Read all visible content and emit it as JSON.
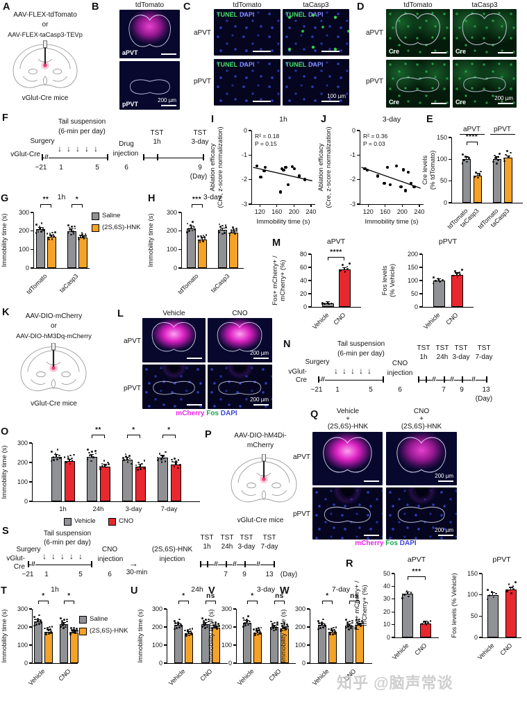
{
  "watermark": "知乎 @脑声常谈",
  "colors": {
    "gray": "#8F9194",
    "orange": "#F5A228",
    "red": "#E8282F"
  },
  "panelA": {
    "letter": "A",
    "line1": "AAV-FLEX-tdTomato",
    "line2": "or",
    "line3": "AAV-FLEX-taCasp3-TEVp",
    "mice": "vGlut-Cre mice"
  },
  "panelB": {
    "letter": "B",
    "title": "tdTomato",
    "row1": "aPVT",
    "row2": "pPVT",
    "scale": "200 µm"
  },
  "panelC": {
    "letter": "C",
    "col1": "tdTomato",
    "col2": "taCasp3",
    "row1": "aPVT",
    "row2": "pPVT",
    "tunel": "TUNEL",
    "dapi": "DAPI",
    "scale": "100 µm"
  },
  "panelD": {
    "letter": "D",
    "col1": "tdTomato",
    "col2": "taCasp3",
    "row1": "aPVT",
    "row2": "pPVT",
    "cre": "Cre",
    "scale": "200 µm"
  },
  "panelE": {
    "letter": "E"
  },
  "panelF": {
    "letter": "F",
    "tail1": "Tail suspension",
    "tail2": "(6-min per day)",
    "surgery": "Surgery",
    "mouse": "vGlut-Cre",
    "drug1": "Drug",
    "drug2": "injection",
    "tst1a": "TST",
    "tst1b": "1h",
    "tst2a": "TST",
    "tst2b": "3-day",
    "m21": "−21",
    "d1": "1",
    "d5": "5",
    "d6": "6",
    "d9": "9",
    "day": "(Day)"
  },
  "panelG": {
    "letter": "G"
  },
  "panelH": {
    "letter": "H"
  },
  "panelI": {
    "letter": "I"
  },
  "panelJ": {
    "letter": "J"
  },
  "panelK": {
    "letter": "K",
    "line1": "AAV-DIO-mCherry",
    "line2": "or",
    "line3": "AAV-DIO-hM3Dq-mCherry",
    "mice": "vGlut-Cre mice"
  },
  "panelL": {
    "letter": "L",
    "col1": "Vehicle",
    "col2": "CNO",
    "row1": "aPVT",
    "row2": "pPVT",
    "scale": "200 µm",
    "cap1": "mCherry",
    "cap2": "Fos",
    "cap3": "DAPI"
  },
  "panelM": {
    "letter": "M"
  },
  "panelN": {
    "letter": "N",
    "tail1": "Tail suspension",
    "tail2": "(6-min per day)",
    "surgery": "Surgery",
    "mouse1": "vGlut-",
    "mouse2": "Cre",
    "cno1": "CNO",
    "cno2": "injection",
    "tst": "TST",
    "t1": "1h",
    "t2": "24h",
    "t3": "3-day",
    "t4": "7-day",
    "m21": "−21",
    "d1": "1",
    "d5": "5",
    "d6": "6",
    "d7": "7",
    "d9": "9",
    "d13": "13",
    "day": "(Day)"
  },
  "panelO": {
    "letter": "O"
  },
  "panelP": {
    "letter": "P",
    "line1": "AAV-DIO-hM4Di-",
    "line2": "mCherry",
    "mice": "vGlut-Cre mice"
  },
  "panelQ": {
    "letter": "Q",
    "col1a": "Vehicle",
    "col1b": "+",
    "col1c": "(2S,6S)-HNK",
    "col2a": "CNO",
    "col2b": "+",
    "col2c": "(2S,6S)-HNK",
    "row1": "aPVT",
    "row2": "pPVT",
    "scale": "200 µm",
    "cap1": "mCherry",
    "cap2": "Fos",
    "cap3": "DAPI"
  },
  "panelR": {
    "letter": "R"
  },
  "panelS": {
    "letter": "S",
    "tail1": "Tail suspension",
    "tail2": "(6-min per day)",
    "surgery": "Surgery",
    "mouse1": "vGlut-",
    "mouse2": "Cre",
    "cno1": "CNO",
    "cno2": "injection",
    "wait": "30-min",
    "hnk1": "(2S,6S)-HNK",
    "hnk2": "injection",
    "tst": "TST",
    "t1": "1h",
    "t2": "24h",
    "t3": "3-day",
    "t4": "7-day",
    "m21": "−21",
    "d1": "1",
    "d5": "5",
    "d6": "6",
    "d7": "7",
    "d9": "9",
    "d13": "13",
    "day": "(Day)"
  },
  "panelT": {
    "letter": "T"
  },
  "panelU": {
    "letter": "U"
  },
  "panelV": {
    "letter": "V"
  },
  "panelW": {
    "letter": "W"
  },
  "chart_data": [
    {
      "id": "E",
      "type": "bar",
      "ylabel": "Cre levels\n(% tdTomato)",
      "ylim": [
        0,
        150
      ],
      "yticks": [
        0,
        50,
        100,
        150
      ],
      "groups": [
        {
          "header": "aPVT",
          "sig": "****",
          "bars": [
            {
              "label": "tdTomato",
              "value": 100,
              "color": "gray"
            },
            {
              "label": "taCasp3",
              "value": 62,
              "color": "orange"
            }
          ]
        },
        {
          "header": "pPVT",
          "bars": [
            {
              "label": "tdTomato",
              "value": 100,
              "color": "gray"
            },
            {
              "label": "taCasp3",
              "value": 103,
              "color": "orange"
            }
          ]
        }
      ]
    },
    {
      "id": "G",
      "type": "bar",
      "title": "1h",
      "ylabel": "Immobility time (s)",
      "ylim": [
        0,
        300
      ],
      "yticks": [
        0,
        100,
        200,
        300
      ],
      "rotate_group": true,
      "groups": [
        {
          "label": "tdTomato",
          "sig": "**",
          "bars": [
            {
              "series": "Saline",
              "value": 210,
              "color": "gray"
            },
            {
              "series": "(2S,6S)-HNK",
              "value": 168,
              "color": "orange"
            }
          ]
        },
        {
          "label": "taCasp3",
          "sig": "*",
          "bars": [
            {
              "series": "Saline",
              "value": 200,
              "color": "gray"
            },
            {
              "series": "(2S,6S)-HNK",
              "value": 165,
              "color": "orange"
            }
          ]
        }
      ],
      "legend": [
        {
          "label": "Saline",
          "color": "gray"
        },
        {
          "label": "(2S,6S)-HNK",
          "color": "orange"
        }
      ]
    },
    {
      "id": "H",
      "type": "bar",
      "title": "3-day",
      "ylabel": "Immobility time (s)",
      "ylim": [
        0,
        300
      ],
      "yticks": [
        0,
        100,
        200,
        300
      ],
      "rotate_group": true,
      "groups": [
        {
          "label": "tdTomato",
          "sig": "***",
          "bars": [
            {
              "series": "Saline",
              "value": 215,
              "color": "gray"
            },
            {
              "series": "(2S,6S)-HNK",
              "value": 155,
              "color": "orange"
            }
          ]
        },
        {
          "label": "taCasp3",
          "bars": [
            {
              "series": "Saline",
              "value": 205,
              "color": "gray"
            },
            {
              "series": "(2S,6S)-HNK",
              "value": 190,
              "color": "orange"
            }
          ]
        }
      ]
    },
    {
      "id": "I",
      "type": "scatter",
      "title": "1h",
      "stats": [
        "R² = 0.18",
        "P = 0.15"
      ],
      "ylabel": "Ablation efficacy\n(Cre, z-score normalization)",
      "xlabel": "Immobility time (s)",
      "xlim": [
        100,
        250
      ],
      "xticks": [
        120,
        160,
        200,
        240
      ],
      "ylim": [
        -3,
        0
      ],
      "yticks": [
        0,
        -1,
        -2,
        -3
      ],
      "points": [
        [
          113,
          -1.45
        ],
        [
          122,
          -1.9
        ],
        [
          130,
          -1.65
        ],
        [
          133,
          -1.5
        ],
        [
          168,
          -2.5
        ],
        [
          172,
          -1.55
        ],
        [
          176,
          -1.62
        ],
        [
          181,
          -1.5
        ],
        [
          186,
          -2.2
        ],
        [
          196,
          -1.48
        ],
        [
          201,
          -1.55
        ],
        [
          213,
          -1.85
        ],
        [
          226,
          -2.0
        ]
      ],
      "trendline": [
        [
          104,
          -1.5
        ],
        [
          243,
          -2.05
        ]
      ]
    },
    {
      "id": "J",
      "type": "scatter",
      "title": "3-day",
      "stats": [
        "R² = 0.36",
        "P = 0.03"
      ],
      "ylabel": "Ablation efficacy\n(Cre, z-score normalization)",
      "xlabel": "Immobility time (s)",
      "xlim": [
        100,
        250
      ],
      "xticks": [
        120,
        160,
        200,
        240
      ],
      "ylim": [
        -3,
        0
      ],
      "yticks": [
        0,
        -1,
        -2,
        -3
      ],
      "points": [
        [
          112,
          -1.55
        ],
        [
          118,
          -1.62
        ],
        [
          142,
          -1.85
        ],
        [
          158,
          -2.15
        ],
        [
          165,
          -1.5
        ],
        [
          172,
          -2.2
        ],
        [
          186,
          -1.45
        ],
        [
          197,
          -2.3
        ],
        [
          203,
          -1.6
        ],
        [
          208,
          -2.45
        ],
        [
          214,
          -1.7
        ],
        [
          221,
          -2.15
        ],
        [
          228,
          -2.3
        ]
      ],
      "trendline": [
        [
          104,
          -1.5
        ],
        [
          243,
          -2.35
        ]
      ]
    },
    {
      "id": "M1",
      "type": "bar",
      "title": "aPVT",
      "ylabel": "Fos+ mCherry+ /\nmCherry+ (%)",
      "ylim": [
        0,
        80
      ],
      "yticks": [
        0,
        20,
        40,
        60,
        80
      ],
      "groups": [
        {
          "sig": "****",
          "bars": [
            {
              "label": "Vehicle",
              "value": 5,
              "color": "gray"
            },
            {
              "label": "CNO",
              "value": 57,
              "color": "red"
            }
          ]
        }
      ]
    },
    {
      "id": "M2",
      "type": "bar",
      "title": "pPVT",
      "ylabel": "Fos levels\n(% Vehicle)",
      "ylim": [
        0,
        200
      ],
      "yticks": [
        0,
        50,
        100,
        150,
        200
      ],
      "groups": [
        {
          "bars": [
            {
              "label": "Vehicle",
              "value": 100,
              "color": "gray"
            },
            {
              "label": "CNO",
              "value": 122,
              "color": "red"
            }
          ]
        }
      ]
    },
    {
      "id": "O",
      "type": "bar",
      "ylabel": "Immobility time (s)",
      "ylim": [
        0,
        300
      ],
      "yticks": [
        0,
        100,
        200,
        300
      ],
      "groups": [
        {
          "label": "1h",
          "bars": [
            {
              "series": "Vehicle",
              "value": 230,
              "color": "gray"
            },
            {
              "series": "CNO",
              "value": 207,
              "color": "red"
            }
          ]
        },
        {
          "label": "24h",
          "sig": "**",
          "bars": [
            {
              "series": "Vehicle",
              "value": 230,
              "color": "gray"
            },
            {
              "series": "CNO",
              "value": 180,
              "color": "red"
            }
          ]
        },
        {
          "label": "3-day",
          "sig": "*",
          "bars": [
            {
              "series": "Vehicle",
              "value": 215,
              "color": "gray"
            },
            {
              "series": "CNO",
              "value": 180,
              "color": "red"
            }
          ]
        },
        {
          "label": "7-day",
          "sig": "*",
          "bars": [
            {
              "series": "Vehicle",
              "value": 225,
              "color": "gray"
            },
            {
              "series": "CNO",
              "value": 190,
              "color": "red"
            }
          ]
        }
      ],
      "legend": [
        {
          "label": "Vehicle",
          "color": "gray"
        },
        {
          "label": "CNO",
          "color": "red"
        }
      ]
    },
    {
      "id": "R1",
      "type": "bar",
      "title": "aPVT",
      "ylabel": "Fos+ mCherry+ /\nmCherry+ (%)",
      "ylim": [
        0,
        50
      ],
      "yticks": [
        0,
        10,
        20,
        30,
        40,
        50
      ],
      "groups": [
        {
          "sig": "***",
          "bars": [
            {
              "label": "Vehicle",
              "value": 34,
              "color": "gray"
            },
            {
              "label": "CNO",
              "value": 11,
              "color": "red"
            }
          ]
        }
      ]
    },
    {
      "id": "R2",
      "type": "bar",
      "title": "pPVT",
      "ylabel": "Fos levels (% Vehicle)",
      "ylim": [
        0,
        150
      ],
      "yticks": [
        0,
        50,
        100,
        150
      ],
      "groups": [
        {
          "bars": [
            {
              "label": "Vehicle",
              "value": 100,
              "color": "gray"
            },
            {
              "label": "CNO",
              "value": 112,
              "color": "red"
            }
          ]
        }
      ]
    },
    {
      "id": "T",
      "type": "bar",
      "title": "1h",
      "ylabel": "Immobility time (s)",
      "ylim": [
        0,
        300
      ],
      "yticks": [
        0,
        100,
        200,
        300
      ],
      "rotate_group": true,
      "groups": [
        {
          "label": "Vehicle",
          "sig": "*",
          "bars": [
            {
              "series": "Saline",
              "value": 230,
              "color": "gray"
            },
            {
              "series": "(2S,6S)-HNK",
              "value": 175,
              "color": "orange"
            }
          ]
        },
        {
          "label": "CNO",
          "sig": "*",
          "bars": [
            {
              "series": "Saline",
              "value": 215,
              "color": "gray"
            },
            {
              "series": "(2S,6S)-HNK",
              "value": 170,
              "color": "orange"
            }
          ]
        }
      ],
      "legend": [
        {
          "label": "Saline",
          "color": "gray"
        },
        {
          "label": "(2S,6S)-HNK",
          "color": "orange"
        }
      ]
    },
    {
      "id": "U",
      "type": "bar",
      "title": "24h",
      "ylabel": "Immobility time (s)",
      "ylim": [
        0,
        300
      ],
      "yticks": [
        0,
        100,
        200,
        300
      ],
      "rotate_group": true,
      "groups": [
        {
          "label": "Vehicle",
          "sig": "*",
          "bars": [
            {
              "series": "Saline",
              "value": 210,
              "color": "gray"
            },
            {
              "series": "(2S,6S)-HNK",
              "value": 165,
              "color": "orange"
            }
          ]
        },
        {
          "label": "CNO",
          "sig": "ns",
          "bars": [
            {
              "series": "Saline",
              "value": 215,
              "color": "gray"
            },
            {
              "series": "(2S,6S)-HNK",
              "value": 195,
              "color": "orange"
            }
          ]
        }
      ]
    },
    {
      "id": "V",
      "type": "bar",
      "title": "3-day",
      "ylabel": "Immobility time (s)",
      "ylim": [
        0,
        300
      ],
      "yticks": [
        0,
        100,
        200,
        300
      ],
      "rotate_group": true,
      "groups": [
        {
          "label": "Vehicle",
          "sig": "*",
          "bars": [
            {
              "series": "Saline",
              "value": 225,
              "color": "gray"
            },
            {
              "series": "(2S,6S)-HNK",
              "value": 170,
              "color": "orange"
            }
          ]
        },
        {
          "label": "CNO",
          "sig": "ns",
          "bars": [
            {
              "series": "Saline",
              "value": 200,
              "color": "gray"
            },
            {
              "series": "(2S,6S)-HNK",
              "value": 192,
              "color": "orange"
            }
          ]
        }
      ]
    },
    {
      "id": "W",
      "type": "bar",
      "title": "7-day",
      "ylabel": "Immobility time (s)",
      "ylim": [
        0,
        300
      ],
      "yticks": [
        0,
        100,
        200,
        300
      ],
      "rotate_group": true,
      "groups": [
        {
          "label": "Vehicle",
          "sig": "*",
          "bars": [
            {
              "series": "Saline",
              "value": 210,
              "color": "gray"
            },
            {
              "series": "(2S,6S)-HNK",
              "value": 172,
              "color": "orange"
            }
          ]
        },
        {
          "label": "CNO",
          "sig": "ns",
          "bars": [
            {
              "series": "Saline",
              "value": 208,
              "color": "gray"
            },
            {
              "series": "(2S,6S)-HNK",
              "value": 210,
              "color": "orange"
            }
          ]
        }
      ]
    }
  ]
}
